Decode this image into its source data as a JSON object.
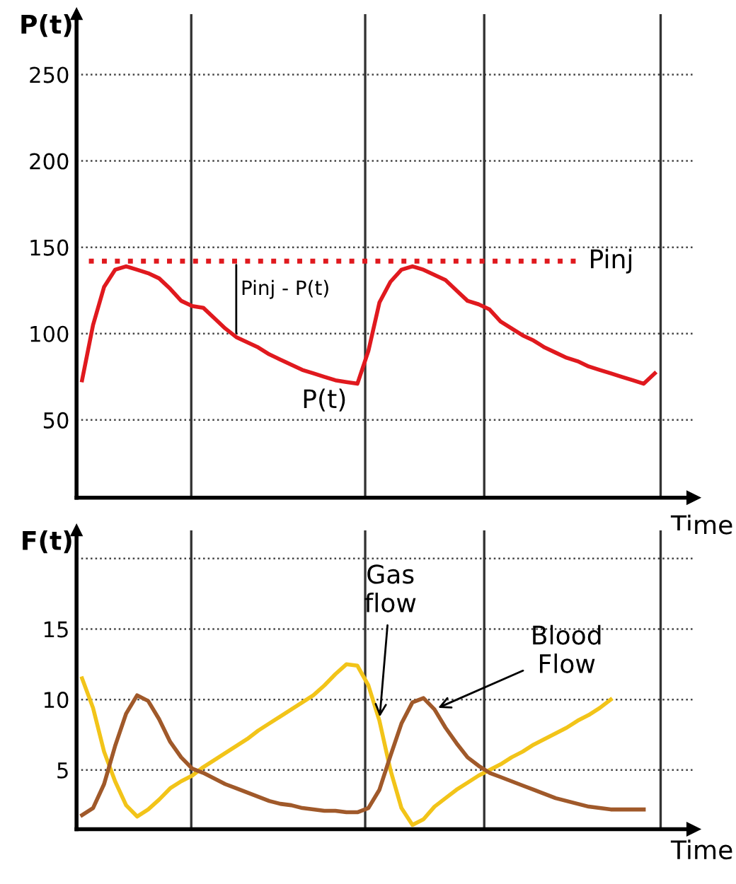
{
  "chart_data": [
    {
      "type": "line",
      "ylabel": "P(t)",
      "xlabel": "Time",
      "tick_labels": "y",
      "grid": "y",
      "line_style": "solid",
      "categories": [
        null,
        null,
        null,
        null,
        null,
        null,
        null,
        null,
        null,
        null,
        null,
        null,
        null,
        null,
        null,
        null,
        null,
        null,
        null,
        null,
        null,
        null,
        null,
        null,
        null,
        null,
        null,
        null,
        null,
        null,
        null,
        null,
        null,
        null,
        null,
        null,
        null,
        null,
        null,
        null,
        null,
        null,
        null,
        null,
        null,
        null,
        null,
        null,
        null,
        null,
        null,
        null,
        null,
        null,
        null,
        null
      ],
      "ylim": [
        5,
        285
      ],
      "yticks": [
        50,
        100,
        150,
        200,
        250
      ],
      "series": [
        {
          "name": "P(t)",
          "color": "#e0191e",
          "values": [
            73,
            105,
            127,
            137,
            139,
            137,
            135,
            132,
            126,
            119,
            116,
            115,
            109,
            103,
            98,
            95,
            92,
            88,
            85,
            82,
            79,
            77,
            75,
            73,
            72,
            71,
            90,
            118,
            130,
            137,
            139,
            137,
            134,
            131,
            125,
            119,
            117,
            114,
            107,
            103,
            99,
            96,
            92,
            89,
            86,
            84,
            81,
            79,
            77,
            75,
            73,
            71,
            77,
            null,
            null,
            null
          ]
        }
      ],
      "ref_lines": [
        {
          "axis": "y",
          "value": 142,
          "label": "Pinj",
          "color": "#e0191e",
          "line_style": "dotted"
        }
      ],
      "annotations": [
        "Pinj - P(t)"
      ]
    },
    {
      "type": "line",
      "ylabel": "F(t)",
      "xlabel": "Time",
      "tick_labels": "y",
      "grid": "y",
      "line_style": "solid",
      "categories": [
        null,
        null,
        null,
        null,
        null,
        null,
        null,
        null,
        null,
        null,
        null,
        null,
        null,
        null,
        null,
        null,
        null,
        null,
        null,
        null,
        null,
        null,
        null,
        null,
        null,
        null,
        null,
        null,
        null,
        null,
        null,
        null,
        null,
        null,
        null,
        null,
        null,
        null,
        null,
        null,
        null,
        null,
        null,
        null,
        null,
        null,
        null,
        null,
        null,
        null,
        null,
        null,
        null,
        null,
        null,
        null
      ],
      "ylim": [
        0.8,
        22
      ],
      "yticks": [
        5,
        10,
        15,
        {
          "value": 20,
          "label": null
        }
      ],
      "series": [
        {
          "name": "Gas\nflow",
          "color": "#f2c419",
          "values": [
            11.5,
            9.4,
            6.3,
            4.2,
            2.5,
            1.7,
            2.2,
            2.9,
            3.7,
            4.2,
            4.6,
            5.2,
            5.7,
            6.2,
            6.7,
            7.2,
            7.8,
            8.3,
            8.8,
            9.3,
            9.8,
            10.3,
            11.0,
            11.8,
            12.5,
            12.4,
            11.0,
            8.5,
            5.0,
            2.3,
            1.1,
            1.5,
            2.4,
            3.0,
            3.6,
            4.1,
            4.6,
            5.0,
            5.4,
            5.9,
            6.3,
            6.8,
            7.2,
            7.6,
            8.0,
            8.5,
            8.9,
            9.4,
            10.0,
            null,
            null,
            null,
            null,
            null,
            null,
            null
          ]
        },
        {
          "name": "Blood\nFlow",
          "color": "#a0592a",
          "values": [
            1.8,
            2.3,
            4.0,
            6.7,
            9.0,
            10.3,
            9.9,
            8.6,
            7.0,
            5.9,
            5.1,
            4.8,
            4.4,
            4.0,
            3.7,
            3.4,
            3.1,
            2.8,
            2.6,
            2.5,
            2.3,
            2.2,
            2.1,
            2.1,
            2.0,
            2.0,
            2.3,
            3.6,
            6.0,
            8.3,
            9.8,
            10.1,
            9.3,
            8.0,
            6.9,
            5.9,
            5.3,
            4.8,
            4.5,
            4.2,
            3.9,
            3.6,
            3.3,
            3.0,
            2.8,
            2.6,
            2.4,
            2.3,
            2.2,
            2.2,
            2.2,
            2.2,
            null,
            null,
            null,
            null
          ]
        }
      ]
    }
  ]
}
